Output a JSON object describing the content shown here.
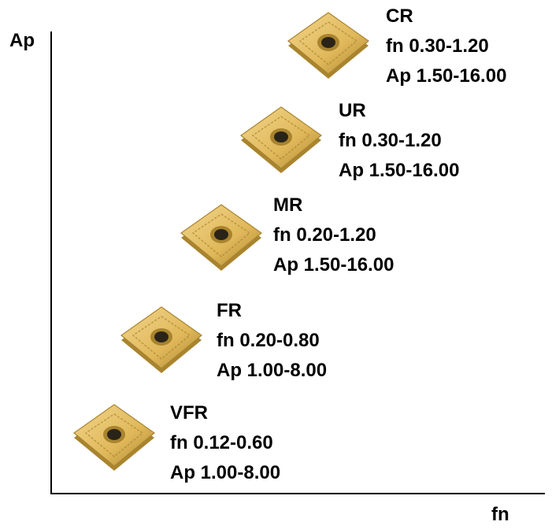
{
  "axes": {
    "y_label": "Ap",
    "x_label": "fn"
  },
  "colors": {
    "insert_gold": "#e0b85a",
    "insert_light": "#f1d58c",
    "insert_dark": "#a9842f",
    "hole": "#2a2418"
  },
  "grades": [
    {
      "name": "CR",
      "fn": "fn  0.30-1.20",
      "ap": "Ap 1.50-16.00",
      "icon": "cr-insert-icon"
    },
    {
      "name": "UR",
      "fn": "fn  0.30-1.20",
      "ap": "Ap 1.50-16.00",
      "icon": "ur-insert-icon"
    },
    {
      "name": "MR",
      "fn": "fn  0.20-1.20",
      "ap": "Ap 1.50-16.00",
      "icon": "mr-insert-icon"
    },
    {
      "name": "FR",
      "fn": "fn  0.20-0.80",
      "ap": "Ap 1.00-8.00",
      "icon": "fr-insert-icon"
    },
    {
      "name": "VFR",
      "fn": "fn  0.12-0.60",
      "ap": "Ap 1.00-8.00",
      "icon": "vfr-insert-icon"
    }
  ]
}
